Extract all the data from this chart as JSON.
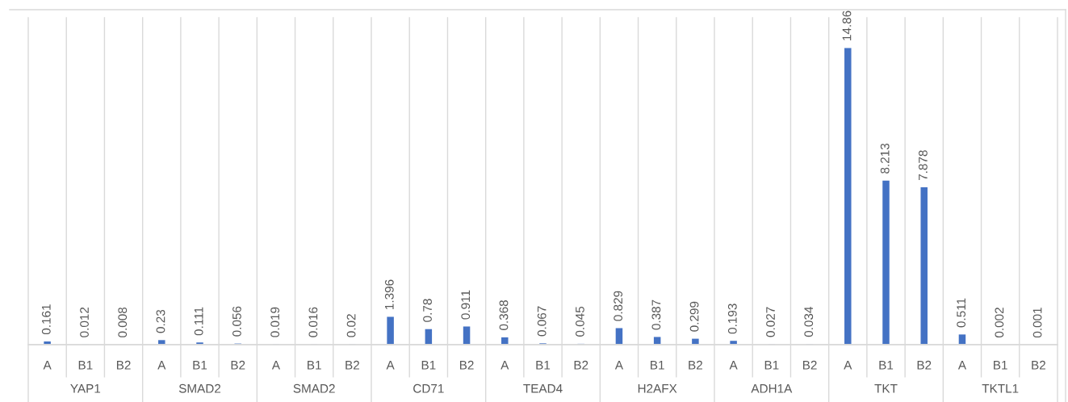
{
  "chart_data": {
    "type": "bar",
    "categories": [
      "A",
      "B1",
      "B2",
      "A",
      "B1",
      "B2",
      "A",
      "B1",
      "B2",
      "A",
      "B1",
      "B2",
      "A",
      "B1",
      "B2",
      "A",
      "B1",
      "B2",
      "A",
      "B1",
      "B2",
      "A",
      "B1",
      "B2",
      "A",
      "B1",
      "B2"
    ],
    "values": [
      0.161,
      0.012,
      0.008,
      0.23,
      0.111,
      0.056,
      0.019,
      0.016,
      0.02,
      1.396,
      0.78,
      0.911,
      0.368,
      0.067,
      0.045,
      0.829,
      0.387,
      0.299,
      0.193,
      0.027,
      0.034,
      14.86,
      8.213,
      7.878,
      0.511,
      0.002,
      0.001
    ],
    "color": "#4472c4",
    "data_labels": true,
    "grid": false,
    "legend": false,
    "annotations": [
      "YAP1",
      "SMAD2",
      "SMAD2",
      "CD71",
      "TEAD4",
      "H2AFX",
      "ADH1A",
      "TKT",
      "TKTL1"
    ]
  }
}
